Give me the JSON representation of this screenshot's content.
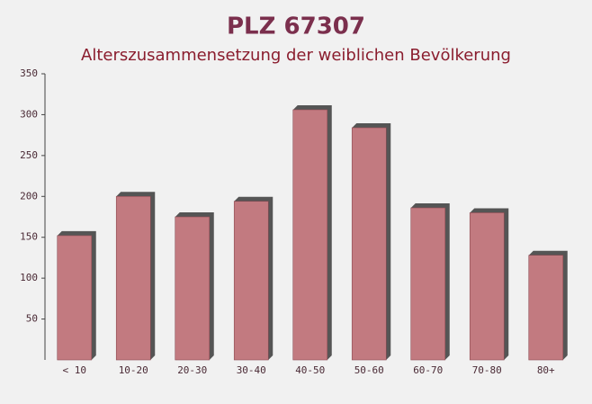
{
  "chart_data": {
    "type": "bar",
    "title": "PLZ 67307",
    "subtitle": "Alterszusammensetzung der weiblichen Bevölkerung",
    "categories": [
      "< 10",
      "10-20",
      "20-30",
      "30-40",
      "40-50",
      "50-60",
      "60-70",
      "70-80",
      "80+"
    ],
    "values": [
      152,
      200,
      175,
      194,
      306,
      284,
      186,
      180,
      128
    ],
    "color": "#c27a80",
    "ylim": [
      0,
      350
    ],
    "yticks": [
      50,
      100,
      150,
      200,
      250,
      300,
      350
    ],
    "grid": false
  }
}
